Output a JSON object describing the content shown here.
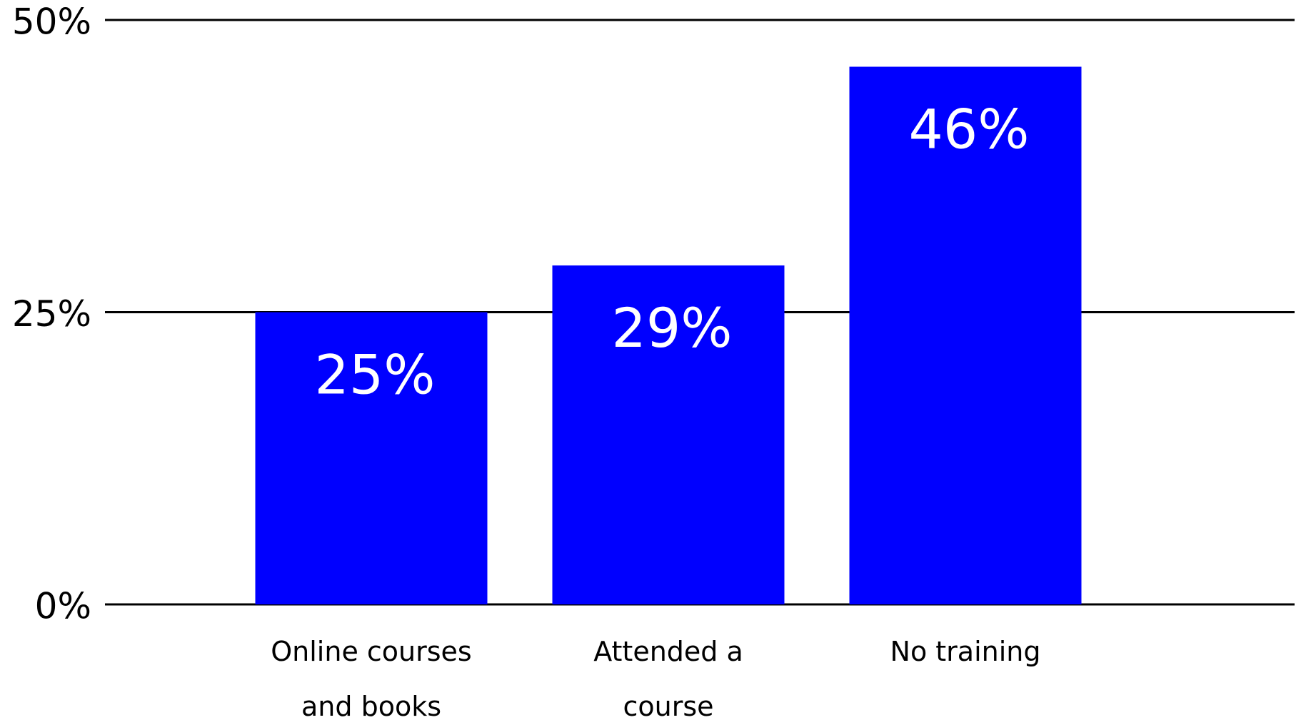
{
  "chart_data": {
    "type": "bar",
    "categories": [
      "Online courses and books",
      "Attended a course",
      "No training"
    ],
    "values": [
      25,
      29,
      46
    ],
    "value_labels": [
      "25%",
      "29%",
      "46%"
    ],
    "color": "#0000ff",
    "ylim": [
      0,
      50
    ],
    "yticks": [
      {
        "value": 0,
        "label": "0%"
      },
      {
        "value": 25,
        "label": "25%"
      },
      {
        "value": 50,
        "label": "50%"
      }
    ],
    "grid": true
  }
}
